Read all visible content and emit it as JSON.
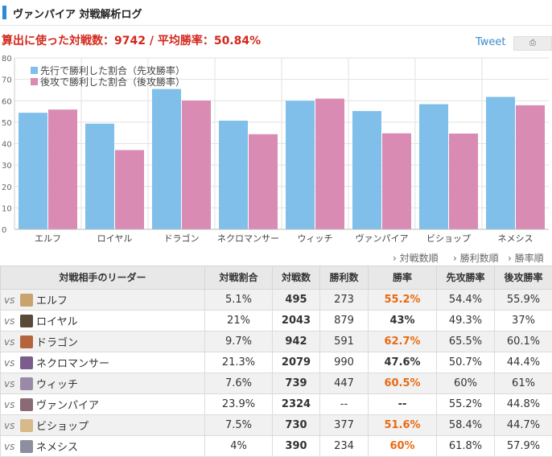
{
  "header": {
    "title": "ヴァンパイア 対戦解析ログ"
  },
  "summary": "算出に使った対戦数：9742 / 平均勝率：50.84%",
  "tweet": {
    "label": "Tweet",
    "share_icon": "share-icon"
  },
  "chart_data": {
    "type": "bar",
    "categories": [
      "エルフ",
      "ロイヤル",
      "ドラゴン",
      "ネクロマンサー",
      "ウィッチ",
      "ヴァンパイア",
      "ビショップ",
      "ネメシス"
    ],
    "series": [
      {
        "name": "先行で勝利した割合（先攻勝率）",
        "color": "#7fbfea",
        "values": [
          54.4,
          49.3,
          65.5,
          50.7,
          60,
          55.2,
          58.4,
          61.8
        ]
      },
      {
        "name": "後攻で勝利した割合（後攻勝率）",
        "color": "#d98bb3",
        "values": [
          55.9,
          37,
          60.1,
          44.4,
          61,
          44.8,
          44.7,
          57.9
        ]
      }
    ],
    "y_ticks": [
      0,
      10,
      20,
      30,
      40,
      50,
      60,
      70,
      80
    ],
    "ylim": [
      0,
      80
    ],
    "grid": true,
    "legend_position": "top-left"
  },
  "sort_links": [
    "対戦数順",
    "勝利数順",
    "勝率順"
  ],
  "table": {
    "headers": [
      "対戦相手のリーダー",
      "対戦割合",
      "対戦数",
      "勝利数",
      "勝率",
      "先攻勝率",
      "後攻勝率"
    ],
    "vs_label": "vs",
    "rows": [
      {
        "name": "エルフ",
        "share": "5.1%",
        "games": "495",
        "wins": "273",
        "rate": "55.2%",
        "first": "54.4%",
        "second": "55.9%",
        "rate_high": true,
        "icon": "elf-leader-icon",
        "icon_color": "#c9a36b"
      },
      {
        "name": "ロイヤル",
        "share": "21%",
        "games": "2043",
        "wins": "879",
        "rate": "43%",
        "first": "49.3%",
        "second": "37%",
        "rate_high": false,
        "icon": "royal-leader-icon",
        "icon_color": "#5a4a3a"
      },
      {
        "name": "ドラゴン",
        "share": "9.7%",
        "games": "942",
        "wins": "591",
        "rate": "62.7%",
        "first": "65.5%",
        "second": "60.1%",
        "rate_high": true,
        "icon": "dragon-leader-icon",
        "icon_color": "#b5653d"
      },
      {
        "name": "ネクロマンサー",
        "share": "21.3%",
        "games": "2079",
        "wins": "990",
        "rate": "47.6%",
        "first": "50.7%",
        "second": "44.4%",
        "rate_high": false,
        "icon": "necromancer-leader-icon",
        "icon_color": "#7a5d8a"
      },
      {
        "name": "ウィッチ",
        "share": "7.6%",
        "games": "739",
        "wins": "447",
        "rate": "60.5%",
        "first": "60%",
        "second": "61%",
        "rate_high": true,
        "icon": "witch-leader-icon",
        "icon_color": "#9a8aa8"
      },
      {
        "name": "ヴァンパイア",
        "share": "23.9%",
        "games": "2324",
        "wins": "--",
        "rate": "--",
        "first": "55.2%",
        "second": "44.8%",
        "rate_high": false,
        "icon": "vampire-leader-icon",
        "icon_color": "#8a6a74"
      },
      {
        "name": "ビショップ",
        "share": "7.5%",
        "games": "730",
        "wins": "377",
        "rate": "51.6%",
        "first": "58.4%",
        "second": "44.7%",
        "rate_high": true,
        "icon": "bishop-leader-icon",
        "icon_color": "#d7b98a"
      },
      {
        "name": "ネメシス",
        "share": "4%",
        "games": "390",
        "wins": "234",
        "rate": "60%",
        "first": "61.8%",
        "second": "57.9%",
        "rate_high": true,
        "icon": "nemesis-leader-icon",
        "icon_color": "#8c8fa0"
      }
    ]
  }
}
